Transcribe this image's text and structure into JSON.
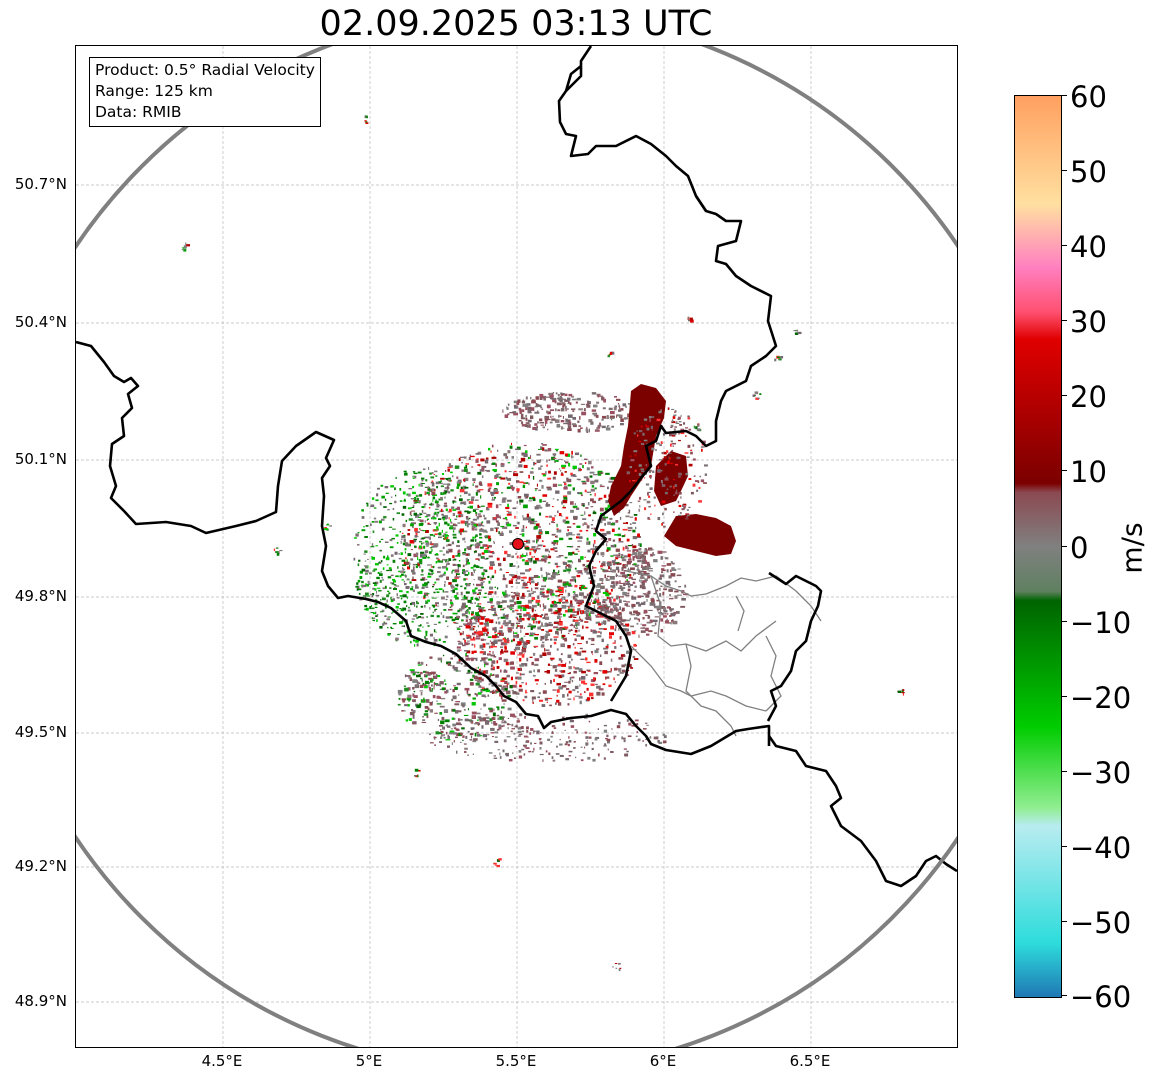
{
  "title": "02.09.2025 03:13 UTC",
  "info_box": {
    "product": "Product: 0.5° Radial Velocity",
    "range": "Range: 125 km",
    "data": "Data: RMIB"
  },
  "axes": {
    "lat_labels": [
      "50.7°N",
      "50.4°N",
      "50.1°N",
      "49.8°N",
      "49.5°N",
      "49.2°N",
      "48.9°N"
    ],
    "lon_labels": [
      "4.5°E",
      "5°E",
      "5.5°E",
      "6°E",
      "6.5°E"
    ]
  },
  "colorbar": {
    "unit": "m/s",
    "ticks": [
      "60",
      "50",
      "40",
      "30",
      "20",
      "10",
      "0",
      "−10",
      "−20",
      "−30",
      "−40",
      "−50",
      "−60"
    ],
    "range": [
      -60,
      60
    ],
    "colors": {
      "neg_extreme": "#1f78b4",
      "neg_cyan": "#2edcdc",
      "neg_light_cyan": "#b8ecf0",
      "neg_light_green": "#90ee90",
      "neg_green": "#00cc00",
      "neg_dark_green": "#006400",
      "zero_gray": "#808080",
      "pos_mauve": "#8b4a52",
      "pos_dark_red": "#7b0000",
      "pos_red": "#e00000",
      "pos_pink": "#ff80c0",
      "pos_peach": "#ffe0a0",
      "pos_orange": "#ffa060"
    }
  },
  "radar": {
    "site_marker_color": "#e3101a",
    "range_ring_color": "#808080"
  }
}
